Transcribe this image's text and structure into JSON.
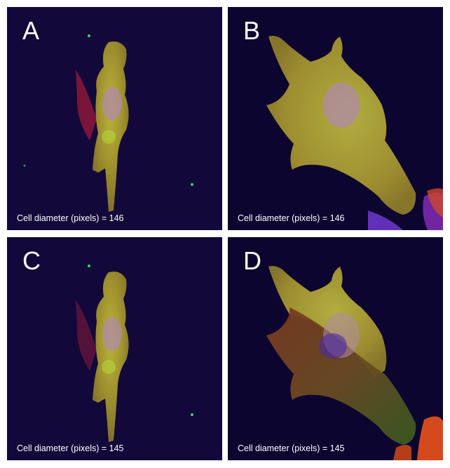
{
  "panels": [
    {
      "letter": "A",
      "caption": "Cell diameter (pixels) = 146"
    },
    {
      "letter": "B",
      "caption": "Cell diameter (pixels) = 146"
    },
    {
      "letter": "C",
      "caption": "Cell diameter (pixels) = 145"
    },
    {
      "letter": "D",
      "caption": "Cell diameter (pixels) = 145"
    }
  ],
  "colors": {
    "background_dark": "#12093a",
    "cell_mask_yellow": "#b8a22a",
    "cell_mask_red": "#a83a1c",
    "nucleus": "#b08aa8",
    "actin_red": "#c21a4a",
    "blob_purple": "#6a35c8"
  }
}
